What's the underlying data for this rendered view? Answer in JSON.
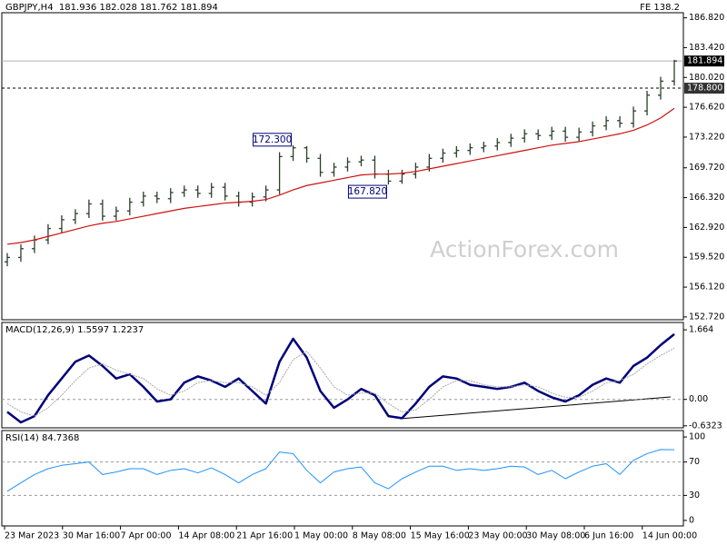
{
  "chart_data": [
    {
      "type": "ohlc",
      "title": "GBPJPY,H4  181.936 182.028 181.762 181.894",
      "corner_label": "FE 138.2",
      "watermark": "ActionForex.com",
      "color": "#2b3f2b",
      "open": [
        159.0,
        159.5,
        160.5,
        161.5,
        162.8,
        163.8,
        164.5,
        165.6,
        164.2,
        164.8,
        165.8,
        166.5,
        166.2,
        166.9,
        167.2,
        166.8,
        167.5,
        166.5,
        165.8,
        166.4,
        167.2,
        171.0,
        172.0,
        170.8,
        169.2,
        169.8,
        170.4,
        170.6,
        169.0,
        168.2,
        169.0,
        169.8,
        170.8,
        171.4,
        171.7,
        172.0,
        172.2,
        172.6,
        173.1,
        173.6,
        173.4,
        173.9,
        173.2,
        173.8,
        174.5,
        175.1,
        174.8,
        176.2,
        178.0,
        179.6
      ],
      "high": [
        160.0,
        161.0,
        162.0,
        163.3,
        164.3,
        165.0,
        166.1,
        166.1,
        165.3,
        166.3,
        167.0,
        167.0,
        167.4,
        167.7,
        167.7,
        168.0,
        168.0,
        167.0,
        166.9,
        167.7,
        171.5,
        172.3,
        172.2,
        171.3,
        170.3,
        170.9,
        171.1,
        171.1,
        169.5,
        169.5,
        170.3,
        171.3,
        171.9,
        172.2,
        172.5,
        172.7,
        173.1,
        173.6,
        174.1,
        174.1,
        174.4,
        174.4,
        174.3,
        175.0,
        175.6,
        175.6,
        176.7,
        178.5,
        180.1,
        182.028
      ],
      "low": [
        158.5,
        159.0,
        160.0,
        161.0,
        162.3,
        163.3,
        164.0,
        163.7,
        163.7,
        164.3,
        165.3,
        165.7,
        165.7,
        166.4,
        166.3,
        166.3,
        166.0,
        165.3,
        165.3,
        165.9,
        166.7,
        170.5,
        170.3,
        168.7,
        168.7,
        169.3,
        169.9,
        168.5,
        167.82,
        167.9,
        168.5,
        169.3,
        170.3,
        170.9,
        171.2,
        171.5,
        171.7,
        172.1,
        172.6,
        172.9,
        172.9,
        172.7,
        172.7,
        173.3,
        174.0,
        174.3,
        174.3,
        175.7,
        177.5,
        179.1
      ],
      "close": [
        159.5,
        160.5,
        161.5,
        162.8,
        163.8,
        164.5,
        165.6,
        164.2,
        164.8,
        165.8,
        166.5,
        166.2,
        166.9,
        167.2,
        166.8,
        167.5,
        166.5,
        165.8,
        166.4,
        167.2,
        171.0,
        172.0,
        170.8,
        169.2,
        169.8,
        170.4,
        170.6,
        169.0,
        168.2,
        169.0,
        169.8,
        170.8,
        171.4,
        171.7,
        172.0,
        172.2,
        172.6,
        173.1,
        173.6,
        173.4,
        173.9,
        173.2,
        173.8,
        174.5,
        175.1,
        174.8,
        176.2,
        178.0,
        179.6,
        181.894
      ],
      "ma": {
        "color": "#d01010",
        "values": [
          161.0,
          161.2,
          161.5,
          161.9,
          162.3,
          162.7,
          163.1,
          163.4,
          163.6,
          163.9,
          164.2,
          164.5,
          164.8,
          165.1,
          165.3,
          165.5,
          165.7,
          165.8,
          165.9,
          166.1,
          166.6,
          167.2,
          167.7,
          168.0,
          168.3,
          168.6,
          168.9,
          169.0,
          169.0,
          169.1,
          169.3,
          169.6,
          169.9,
          170.2,
          170.5,
          170.8,
          171.1,
          171.4,
          171.7,
          172.0,
          172.3,
          172.5,
          172.7,
          173.0,
          173.3,
          173.6,
          174.0,
          174.6,
          175.4,
          176.5
        ]
      },
      "ylim": [
        152.4,
        187.4
      ],
      "yticks": [
        {
          "value": 152.72,
          "label": "152.720"
        },
        {
          "value": 156.12,
          "label": "156.120"
        },
        {
          "value": 159.52,
          "label": "159.520"
        },
        {
          "value": 162.92,
          "label": "162.920"
        },
        {
          "value": 166.32,
          "label": "166.320"
        },
        {
          "value": 169.72,
          "label": "169.720"
        },
        {
          "value": 173.22,
          "label": "173.220"
        },
        {
          "value": 176.62,
          "label": "176.620"
        },
        {
          "value": 180.02,
          "label": "180.020"
        },
        {
          "value": 183.42,
          "label": "183.420"
        },
        {
          "value": 186.82,
          "label": "186.820"
        }
      ],
      "last_price": 181.894,
      "level": {
        "value": 178.8,
        "label": "178.800"
      },
      "annotations": [
        {
          "index": 21,
          "value": 172.3,
          "label": "172.300"
        },
        {
          "index": 28,
          "value": 167.82,
          "label": "167.820"
        }
      ]
    },
    {
      "type": "line",
      "title": "MACD(12,26,9) 1.5597 1.2237",
      "series": [
        {
          "color": "#00007a",
          "width": 2.5,
          "values": [
            -0.3,
            -0.55,
            -0.4,
            0.1,
            0.5,
            0.9,
            1.05,
            0.8,
            0.5,
            0.6,
            0.3,
            -0.05,
            0.0,
            0.4,
            0.55,
            0.45,
            0.3,
            0.5,
            0.2,
            -0.1,
            0.9,
            1.45,
            1.0,
            0.2,
            -0.2,
            0.0,
            0.25,
            0.1,
            -0.4,
            -0.45,
            -0.1,
            0.3,
            0.55,
            0.5,
            0.35,
            0.3,
            0.25,
            0.3,
            0.4,
            0.2,
            0.05,
            -0.05,
            0.1,
            0.35,
            0.5,
            0.4,
            0.8,
            1.0,
            1.3,
            1.5597
          ]
        },
        {
          "color": "#a8a8a8",
          "width": 1,
          "values": [
            -0.1,
            -0.3,
            -0.4,
            -0.2,
            0.1,
            0.45,
            0.75,
            0.85,
            0.7,
            0.6,
            0.5,
            0.25,
            0.1,
            0.2,
            0.4,
            0.45,
            0.4,
            0.4,
            0.3,
            0.1,
            0.4,
            0.95,
            1.15,
            0.75,
            0.3,
            0.1,
            0.15,
            0.15,
            -0.1,
            -0.3,
            -0.25,
            0.0,
            0.3,
            0.45,
            0.45,
            0.35,
            0.3,
            0.3,
            0.35,
            0.3,
            0.15,
            0.05,
            0.05,
            0.2,
            0.4,
            0.45,
            0.6,
            0.85,
            1.05,
            1.2237
          ]
        }
      ],
      "ylim": [
        -0.68,
        1.84
      ],
      "yticks": [
        1.664,
        {
          "value": 0,
          "label": "0.00"
        },
        -0.6323
      ],
      "levels": [
        0
      ]
    },
    {
      "type": "line",
      "title": "RSI(14) 84.7368",
      "series": [
        {
          "color": "#1e90ff",
          "width": 1,
          "values": [
            35,
            45,
            55,
            62,
            66,
            68,
            70,
            55,
            58,
            62,
            62,
            55,
            60,
            62,
            57,
            63,
            55,
            45,
            55,
            62,
            82,
            80,
            60,
            45,
            58,
            62,
            64,
            45,
            38,
            50,
            58,
            65,
            65,
            60,
            62,
            60,
            62,
            65,
            64,
            55,
            60,
            50,
            58,
            65,
            68,
            55,
            72,
            80,
            85,
            84.7368
          ]
        }
      ],
      "ylim": [
        -6.6,
        107.7
      ],
      "yticks": [
        100,
        70,
        30,
        0
      ],
      "levels": [
        70,
        30
      ],
      "x_axis_labels": [
        "23 Mar 2023",
        "30 Mar 16:00",
        "7 Apr 00:00",
        "14 Apr 08:00",
        "21 Apr 16:00",
        "1 May 00:00",
        "8 May 08:00",
        "15 May 16:00",
        "23 May 00:00",
        "30 May 08:00",
        "6 Jun 16:00",
        "14 Jun 00:00"
      ]
    }
  ]
}
